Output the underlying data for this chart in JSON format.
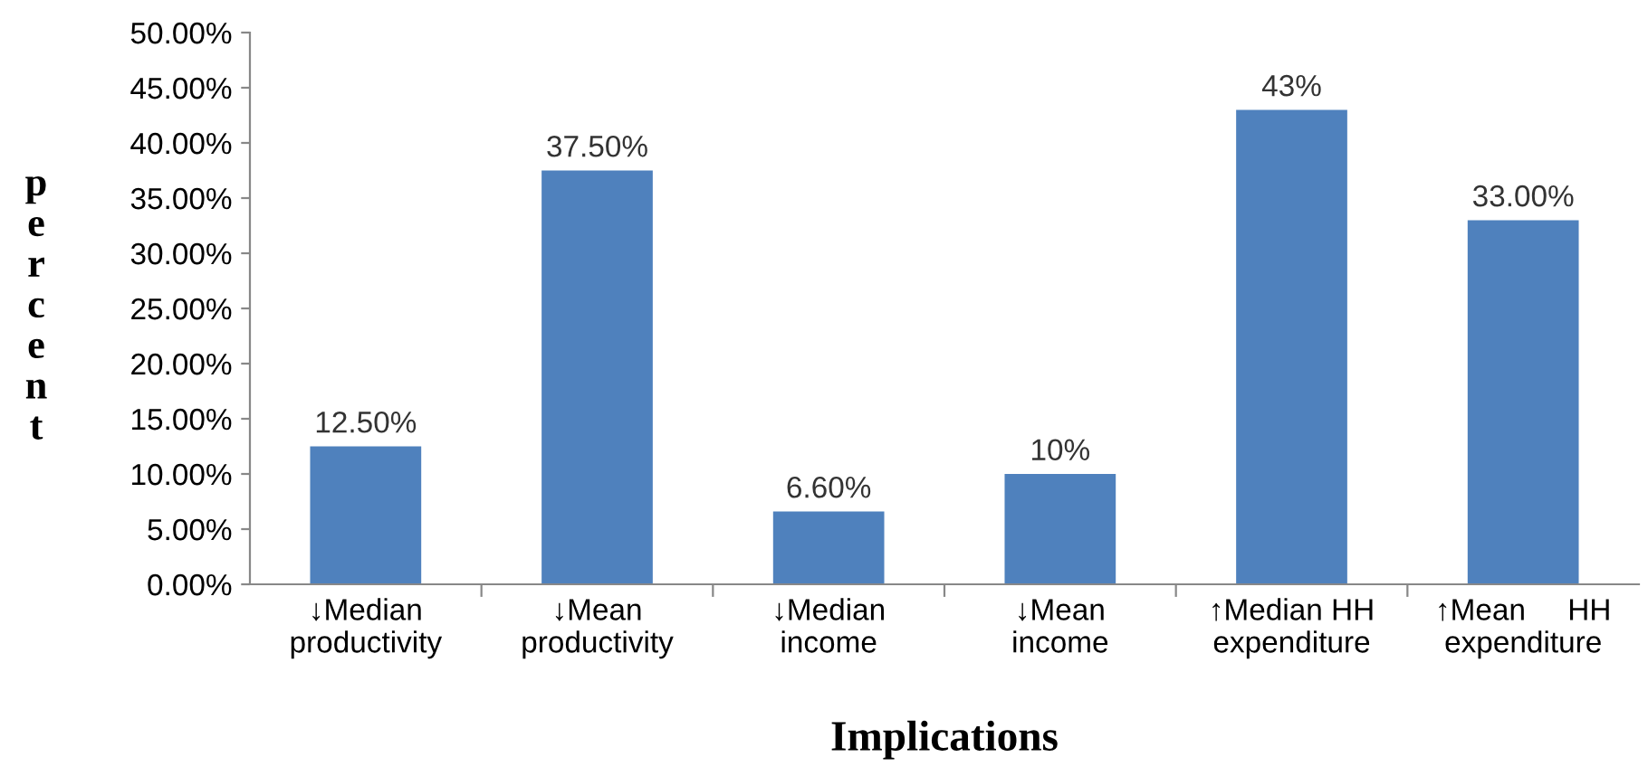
{
  "chart_data": {
    "type": "bar",
    "xlabel": "Implications",
    "ylabel": "percent",
    "categories": [
      "↓Median\nproductivity",
      "↓Mean\nproductivity",
      "↓Median\nincome",
      "↓Mean\nincome",
      "↑Median HH\nexpenditure",
      "↑Mean     HH\nexpenditure"
    ],
    "values": [
      12.5,
      37.5,
      6.6,
      10,
      43,
      33
    ],
    "value_labels": [
      "12.50%",
      "37.50%",
      "6.60%",
      "10%",
      "43%",
      "33.00%"
    ],
    "color": "#4f81bd",
    "ylim": [
      0,
      50
    ],
    "yticks": [
      {
        "value": 0,
        "label": "0.00%"
      },
      {
        "value": 5,
        "label": "5.00%"
      },
      {
        "value": 10,
        "label": "10.00%"
      },
      {
        "value": 15,
        "label": "15.00%"
      },
      {
        "value": 20,
        "label": "20.00%"
      },
      {
        "value": 25,
        "label": "25.00%"
      },
      {
        "value": 30,
        "label": "30.00%"
      },
      {
        "value": 35,
        "label": "35.00%"
      },
      {
        "value": 40,
        "label": "40.00%"
      },
      {
        "value": 45,
        "label": "45.00%"
      },
      {
        "value": 50,
        "label": "50.00%"
      }
    ],
    "grid": false,
    "legend": false
  }
}
